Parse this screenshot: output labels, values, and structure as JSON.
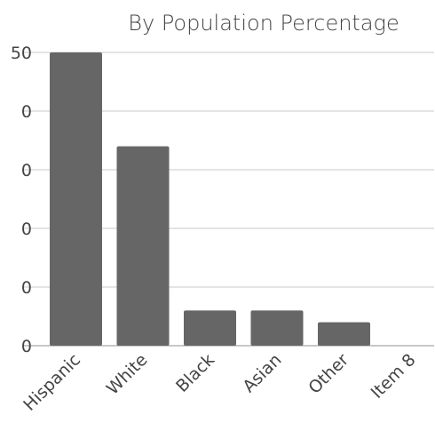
{
  "chart_data": {
    "type": "bar",
    "title": "By Population Percentage",
    "categories": [
      "Hispanic",
      "White",
      "Black",
      "Asian",
      "Other",
      "Item 8"
    ],
    "values": [
      50,
      34,
      6,
      6,
      4,
      0
    ],
    "ylim": [
      0,
      50
    ],
    "yticks": [
      "50",
      "0",
      "0",
      "0",
      "0",
      "0"
    ],
    "xlabel": "",
    "ylabel": "",
    "grid": true,
    "bar_color": "#666666",
    "grid_color": "#c8c8c8",
    "text_color": "#444444"
  }
}
